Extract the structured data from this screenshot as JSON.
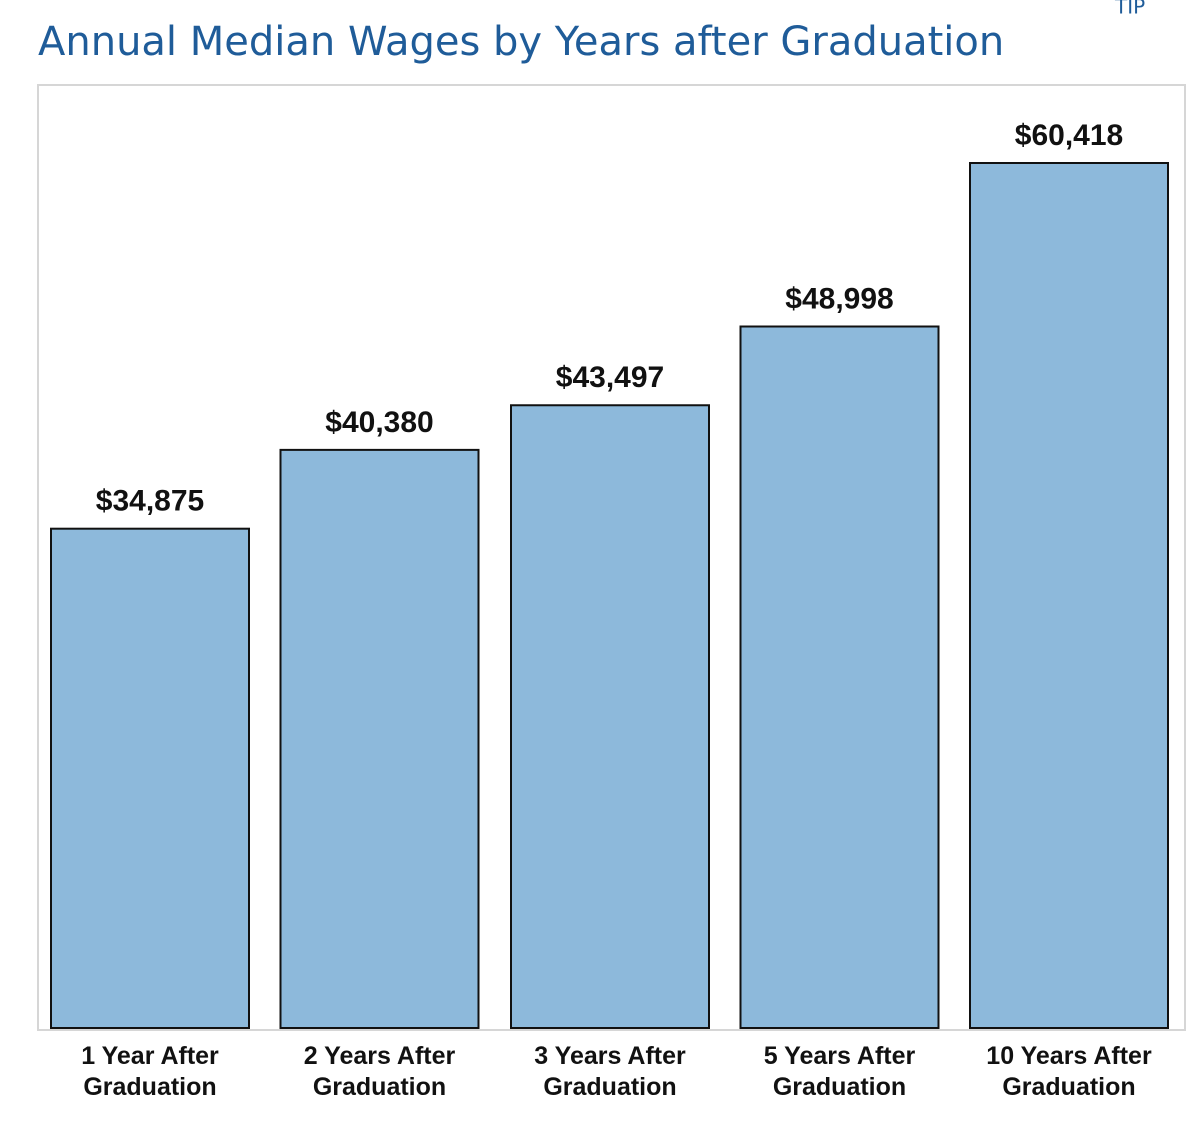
{
  "chart_data": {
    "type": "bar",
    "title": "Annual Median Wages by Years after Graduation",
    "corner_note": "TIP",
    "categories": [
      "1 Year After Graduation",
      "2 Years After Graduation",
      "3 Years After Graduation",
      "5 Years After Graduation",
      "10 Years After Graduation"
    ],
    "values": [
      34875,
      40380,
      43497,
      48998,
      60418
    ],
    "value_labels": [
      "$34,875",
      "$40,380",
      "$43,497",
      "$48,998",
      "$60,418"
    ],
    "color": "#8db9db"
  }
}
